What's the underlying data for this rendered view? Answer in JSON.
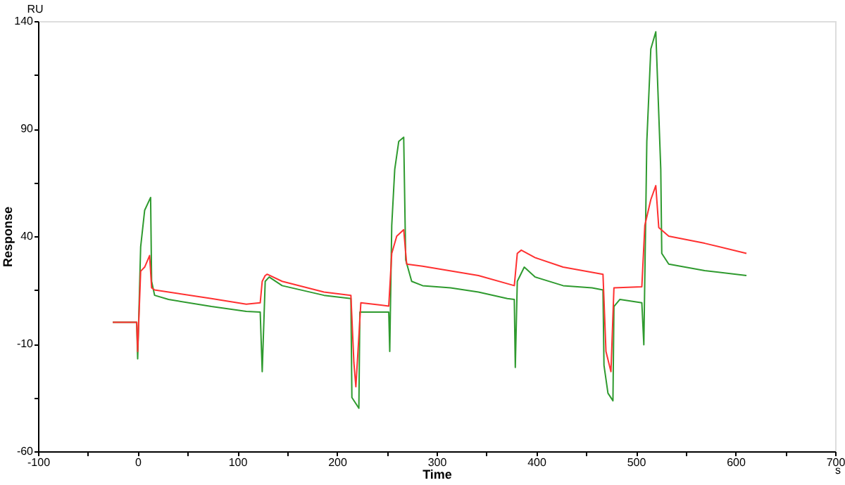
{
  "chart_data": {
    "type": "line",
    "xlabel": "Time",
    "ylabel": "Response",
    "annotations": [
      "RU",
      "s"
    ],
    "xlim": [
      -100,
      700
    ],
    "ylim": [
      -60,
      140
    ],
    "xticks": [
      -100,
      {
        "value": -50,
        "label": null
      },
      0,
      {
        "value": 50,
        "label": null
      },
      100,
      {
        "value": 150,
        "label": null
      },
      200,
      {
        "value": 250,
        "label": null
      },
      300,
      {
        "value": 350,
        "label": null
      },
      400,
      {
        "value": 450,
        "label": null
      },
      500,
      {
        "value": 550,
        "label": null
      },
      600,
      {
        "value": 650,
        "label": null
      },
      700
    ],
    "yticks": [
      -60,
      {
        "value": -35,
        "label": null
      },
      -10,
      {
        "value": 15,
        "label": null
      },
      40,
      {
        "value": 65,
        "label": null
      },
      90,
      {
        "value": 115,
        "label": null
      },
      140
    ],
    "grid": false,
    "marker": "none",
    "line_style": "solid",
    "series": [
      {
        "color": "#2e9a2e",
        "x": [
          -25,
          -1,
          0,
          3,
          7,
          13,
          14,
          17,
          31,
          74,
          109,
          123,
          125,
          128,
          132,
          145,
          187,
          214,
          215,
          222,
          223,
          225,
          244,
          252,
          253,
          255,
          258,
          262,
          267,
          269,
          275,
          286,
          314,
          342,
          371,
          378,
          379,
          381,
          388,
          399,
          427,
          456,
          467,
          468,
          472,
          477,
          478,
          484,
          506,
          508,
          511,
          515,
          520,
          525,
          526,
          533,
          569,
          611
        ],
        "values": [
          0,
          0,
          -17,
          35,
          52,
          58,
          19,
          12.5,
          10.6,
          7.3,
          5,
          4.7,
          -23,
          19,
          21,
          17,
          12.5,
          11,
          -35,
          -40,
          4.7,
          4.7,
          4.7,
          4.7,
          -13.6,
          45,
          71,
          84,
          86,
          29,
          19,
          17,
          16,
          14,
          11,
          10.6,
          -21,
          19,
          25.6,
          21,
          17,
          16,
          15,
          -20,
          -33,
          -36.5,
          7.3,
          10.6,
          9,
          -10.5,
          84,
          127,
          135,
          71,
          32,
          27,
          24,
          21.7
        ]
      },
      {
        "color": "#ff3030",
        "x": [
          -25,
          -1,
          0,
          3,
          7,
          12,
          14,
          17,
          31,
          74,
          109,
          123,
          125,
          128,
          130,
          145,
          187,
          214,
          217,
          219,
          224,
          244,
          252,
          255,
          260,
          267,
          270,
          286,
          342,
          378,
          381,
          385,
          399,
          427,
          467,
          470,
          475,
          478,
          506,
          509,
          515,
          520,
          523,
          533,
          569,
          611
        ],
        "values": [
          0,
          0,
          -13.6,
          23.7,
          25.6,
          31,
          16,
          15,
          14,
          11,
          8.4,
          9,
          19,
          21.7,
          22.3,
          19,
          14,
          12.5,
          -18.8,
          -30,
          9,
          8,
          7.5,
          32,
          40,
          43,
          27,
          26,
          21.7,
          17,
          32,
          33.5,
          30,
          25.6,
          22.3,
          -13.6,
          -23,
          16,
          16.5,
          45,
          57,
          63.5,
          44,
          40,
          36.7,
          32
        ]
      }
    ]
  }
}
